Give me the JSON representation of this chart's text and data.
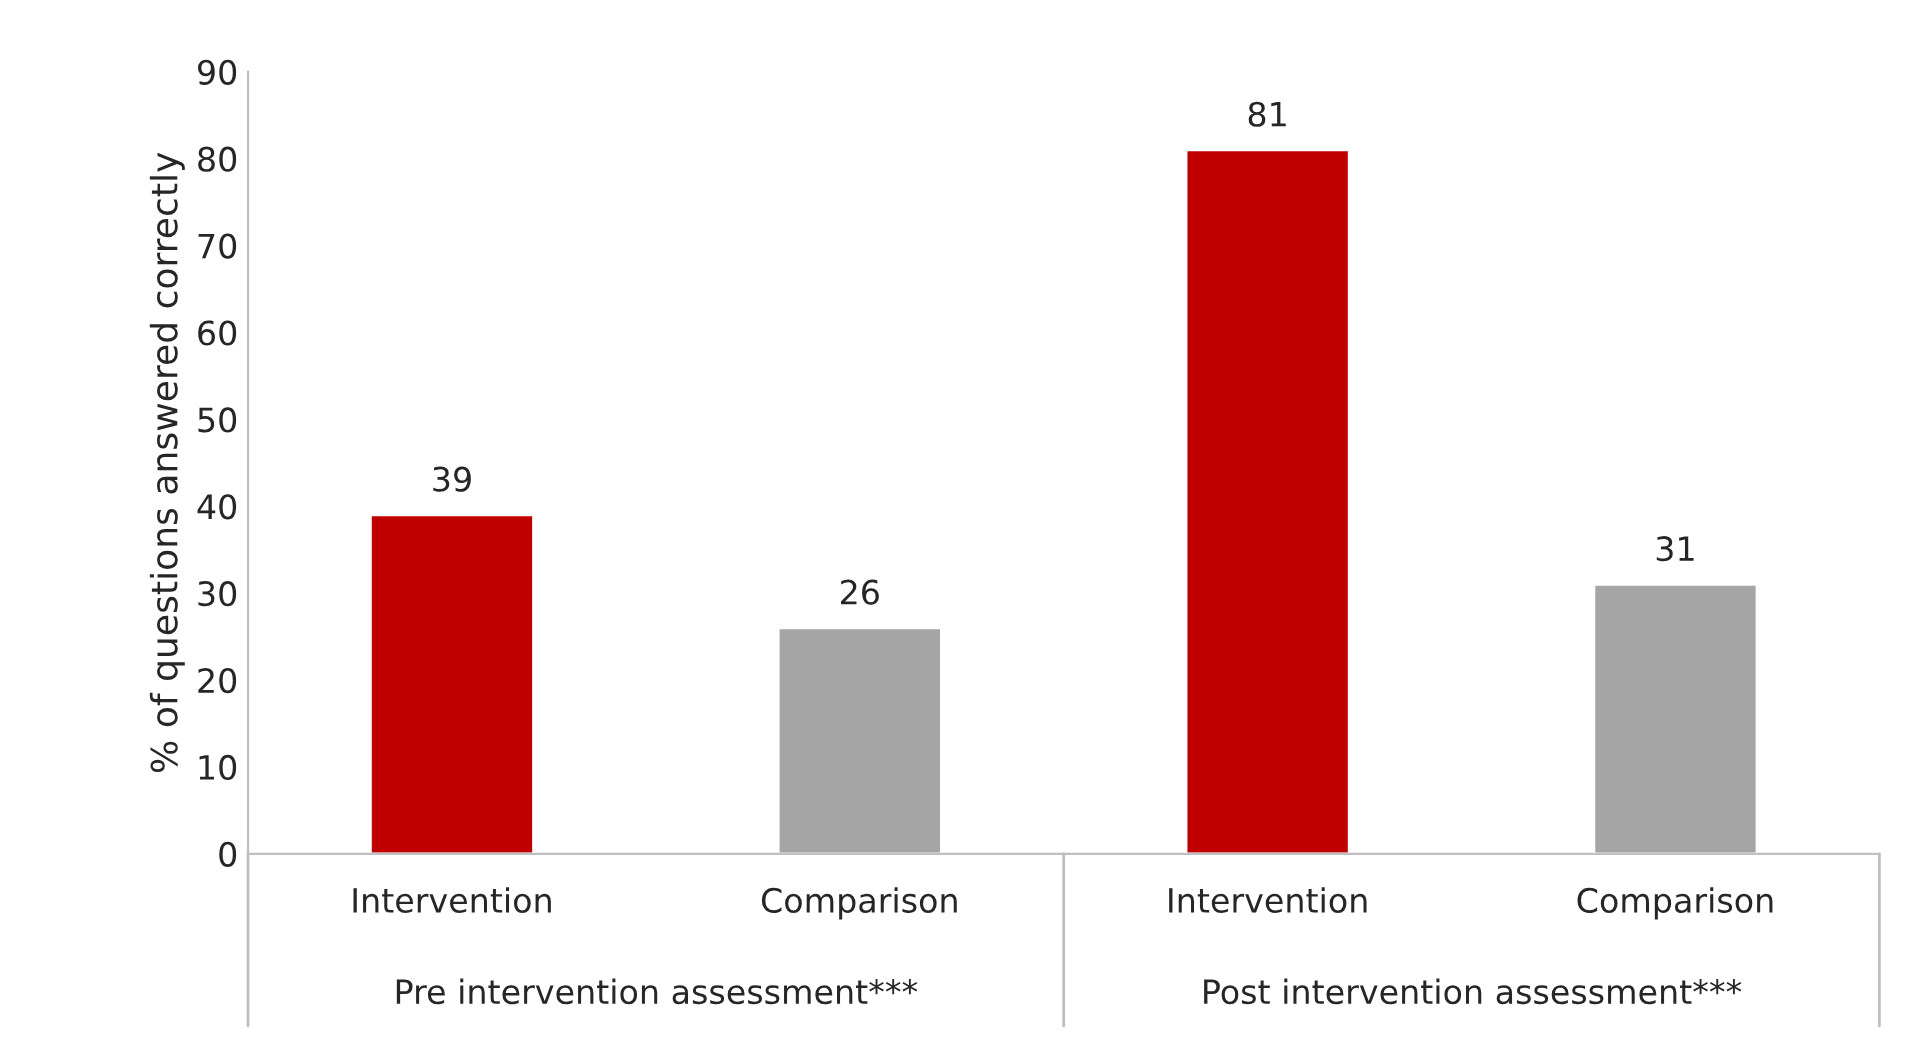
{
  "chart_data": {
    "type": "bar",
    "ylabel": "% of questions answered correctly",
    "categories": [
      "Intervention",
      "Comparison",
      "Intervention",
      "Comparison"
    ],
    "values": [
      39,
      26,
      81,
      31
    ],
    "colors": [
      "#c00000",
      "#a5a5a5",
      "#c00000",
      "#a5a5a5"
    ],
    "ylim": [
      0,
      90
    ],
    "yticks": [
      0,
      10,
      20,
      30,
      40,
      50,
      60,
      70,
      80,
      90
    ],
    "data_labels": true,
    "grid": false,
    "legend": false,
    "annotations": [
      "Pre intervention assessment***",
      "Post intervention assessment***"
    ]
  }
}
